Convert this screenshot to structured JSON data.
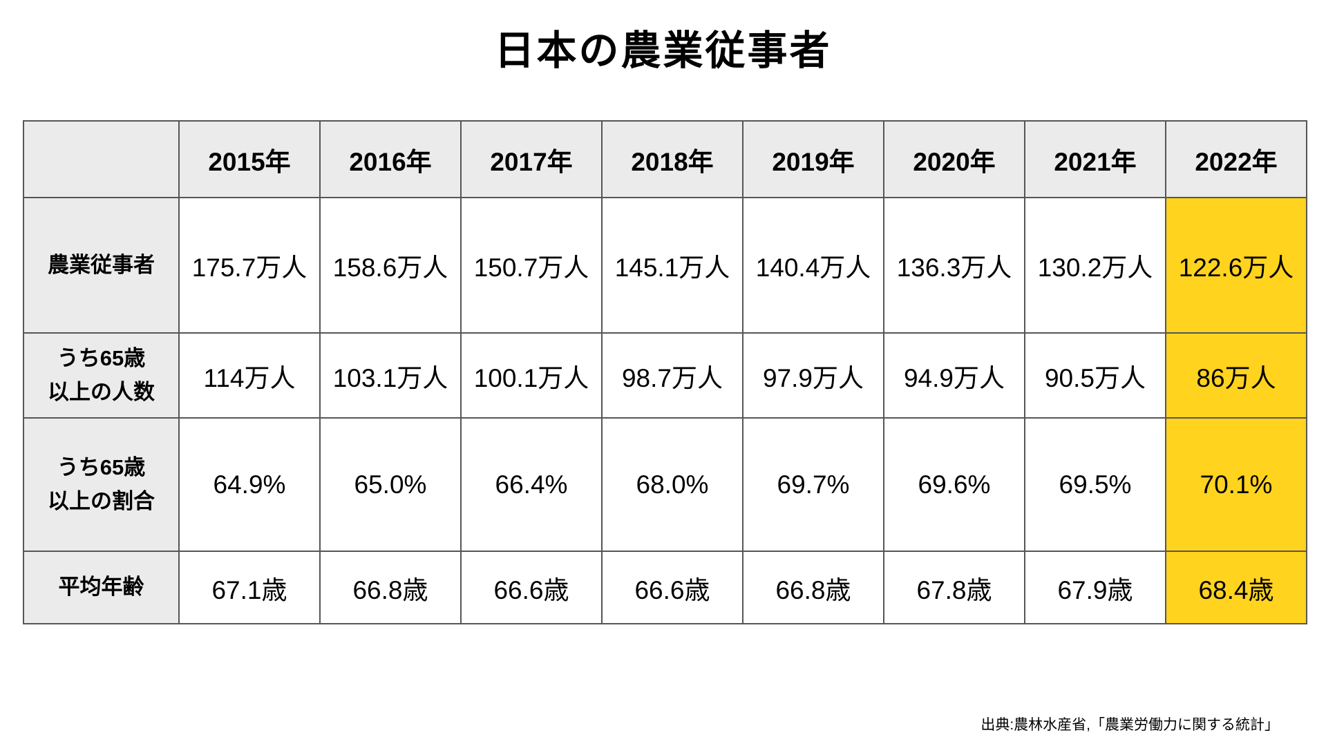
{
  "title": "日本の農業従事者",
  "table": {
    "corner_label": "",
    "col_headers": [
      "2015年",
      "2016年",
      "2017年",
      "2018年",
      "2019年",
      "2020年",
      "2021年",
      "2022年"
    ],
    "rows": [
      {
        "label": "農業従事者",
        "values": [
          "175.7万人",
          "158.6万人",
          "150.7万人",
          "145.1万人",
          "140.4万人",
          "136.3万人",
          "130.2万人",
          "122.6万人"
        ]
      },
      {
        "label": "うち65歳\n以上の人数",
        "values": [
          "114万人",
          "103.1万人",
          "100.1万人",
          "98.7万人",
          "97.9万人",
          "94.9万人",
          "90.5万人",
          "86万人"
        ]
      },
      {
        "label": "うち65歳\n以上の割合",
        "values": [
          "64.9%",
          "65.0%",
          "66.4%",
          "68.0%",
          "69.7%",
          "69.6%",
          "69.5%",
          "70.1%"
        ]
      },
      {
        "label": "平均年齢",
        "values": [
          "67.1歳",
          "66.8歳",
          "66.6歳",
          "66.6歳",
          "66.8歳",
          "67.8歳",
          "67.9歳",
          "68.4歳"
        ]
      }
    ],
    "highlighted_column": "2022年",
    "colors": {
      "header_bg": "#ebebeb",
      "highlight_bg": "#ffd31e",
      "border": "#555555"
    }
  },
  "source": "出典:農林水産省,「農業労働力に関する統計」",
  "chart_data": {
    "type": "table",
    "title": "日本の農業従事者",
    "categories": [
      "2015年",
      "2016年",
      "2017年",
      "2018年",
      "2019年",
      "2020年",
      "2021年",
      "2022年"
    ],
    "series": [
      {
        "name": "農業従事者",
        "unit": "万人",
        "values": [
          175.7,
          158.6,
          150.7,
          145.1,
          140.4,
          136.3,
          130.2,
          122.6
        ]
      },
      {
        "name": "うち65歳以上の人数",
        "unit": "万人",
        "values": [
          114,
          103.1,
          100.1,
          98.7,
          97.9,
          94.9,
          90.5,
          86
        ]
      },
      {
        "name": "うち65歳以上の割合",
        "unit": "%",
        "values": [
          64.9,
          65.0,
          66.4,
          68.0,
          69.7,
          69.6,
          69.5,
          70.1
        ]
      },
      {
        "name": "平均年齢",
        "unit": "歳",
        "values": [
          67.1,
          66.8,
          66.6,
          66.6,
          66.8,
          67.8,
          67.9,
          68.4
        ]
      }
    ],
    "highlighted_category": "2022年",
    "legend": false,
    "grid": true,
    "source": "出典:農林水産省,「農業労働力に関する統計」"
  }
}
